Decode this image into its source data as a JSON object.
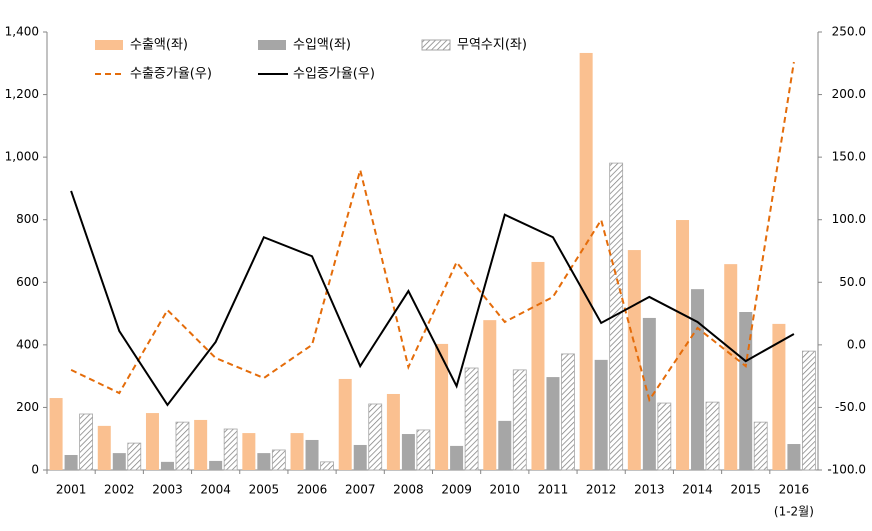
{
  "chart_data": {
    "type": "combo",
    "categories": [
      "2001",
      "2002",
      "2003",
      "2004",
      "2005",
      "2006",
      "2007",
      "2008",
      "2009",
      "2010",
      "2011",
      "2012",
      "2013",
      "2014",
      "2015",
      "2016"
    ],
    "x_note": "(1-2월)",
    "ylim": [
      0,
      1400
    ],
    "yticks": [
      0,
      200,
      400,
      600,
      800,
      {
        "value": 1000,
        "label": "1,000"
      },
      {
        "value": 1200,
        "label": "1,200"
      },
      {
        "value": 1400,
        "label": "1,400"
      }
    ],
    "y2lim": [
      -100,
      250
    ],
    "y2ticks": [
      {
        "value": -100,
        "label": "-100.0"
      },
      {
        "value": -50,
        "label": "-50.0"
      },
      {
        "value": 0,
        "label": "0.0"
      },
      {
        "value": 50,
        "label": "50.0"
      },
      {
        "value": 100,
        "label": "100.0"
      },
      {
        "value": 150,
        "label": "150.0"
      },
      {
        "value": 200,
        "label": "200.0"
      },
      {
        "value": 250,
        "label": "250.0"
      }
    ],
    "grid": false,
    "series": [
      {
        "name": "수출액(좌)",
        "type": "bar",
        "color": "#FAC090",
        "values": [
          230,
          141,
          182,
          160,
          118,
          118,
          291,
          243,
          403,
          479,
          665,
          1333,
          703,
          799,
          658,
          467
        ]
      },
      {
        "name": "수입액(좌)",
        "type": "bar",
        "color": "#A6A6A6",
        "values": [
          48,
          54,
          26,
          29,
          54,
          96,
          80,
          115,
          77,
          157,
          297,
          352,
          486,
          578,
          505,
          83
        ]
      },
      {
        "name": "무역수지(좌)",
        "type": "bar",
        "color": "#A6A6A6",
        "pattern": "hatch",
        "values": [
          179,
          86,
          153,
          131,
          64,
          26,
          211,
          128,
          326,
          320,
          371,
          981,
          214,
          217,
          153,
          380
        ]
      },
      {
        "name": "수출증가율(우)",
        "type": "line",
        "axis": "y2",
        "color": "#E46C0A",
        "dash": true,
        "values": [
          -20.0,
          -38.5,
          27.8,
          -10.5,
          -26.5,
          0.0,
          139.7,
          -17.7,
          66.0,
          18.3,
          38.3,
          99.8,
          -44.0,
          13.5,
          -17.0,
          226.0
        ]
      },
      {
        "name": "수입증가율(우)",
        "type": "line",
        "axis": "y2",
        "color": "#000000",
        "values": [
          123.0,
          11.0,
          -48.0,
          2.3,
          86.0,
          70.8,
          -17.0,
          43.0,
          -33.0,
          104.0,
          86.0,
          17.5,
          38.3,
          18.3,
          -13.0,
          8.7
        ]
      }
    ]
  }
}
